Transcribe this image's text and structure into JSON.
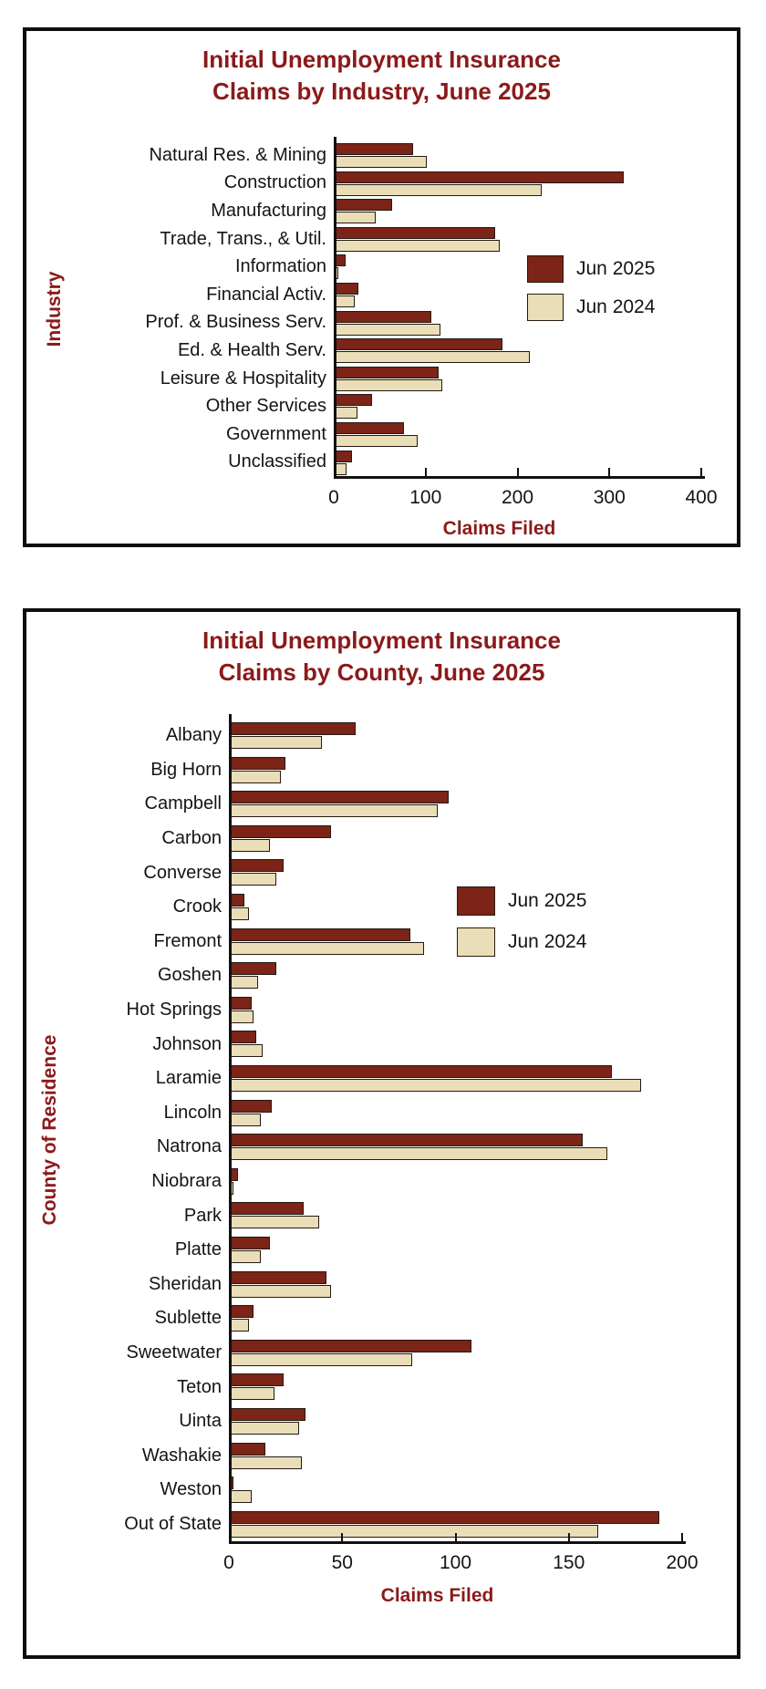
{
  "page": {
    "background": "#ffffff"
  },
  "colors": {
    "title_maroon": "#8B1A1A",
    "bar_jun2025": "#7B2417",
    "bar_jun2024": "#EADEB8",
    "bar_border": "#241a12",
    "axis_black": "#111111"
  },
  "chart_data": [
    {
      "type": "bar",
      "orientation": "horizontal",
      "title_line1": "Initial Unemployment Insurance",
      "title_line2": "Claims by Industry, June 2025",
      "xlabel": "Claims Filed",
      "ylabel": "Industry",
      "xlim": [
        0,
        400
      ],
      "xticks": [
        0,
        100,
        200,
        300,
        400
      ],
      "grid": false,
      "legend_position": "inside-right",
      "categories": [
        "Natural Res. & Mining",
        "Construction",
        "Manufacturing",
        "Trade, Trans., & Util.",
        "Information",
        "Financial Activ.",
        "Prof. & Business Serv.",
        "Ed. & Health Serv.",
        "Leisure & Hospitality",
        "Other Services",
        "Government",
        "Unclassified"
      ],
      "series": [
        {
          "name": "Jun 2025",
          "color": "#7B2417",
          "values": [
            86,
            316,
            64,
            176,
            13,
            27,
            106,
            184,
            114,
            42,
            76,
            20
          ]
        },
        {
          "name": "Jun 2024",
          "color": "#EADEB8",
          "values": [
            101,
            226,
            46,
            181,
            5,
            23,
            116,
            213,
            118,
            26,
            91,
            14
          ]
        }
      ]
    },
    {
      "type": "bar",
      "orientation": "horizontal",
      "title_line1": "Initial Unemployment Insurance",
      "title_line2": "Claims by County, June 2025",
      "xlabel": "Claims Filed",
      "ylabel": "County of Residence",
      "xlim": [
        0,
        200
      ],
      "xticks": [
        0,
        50,
        100,
        150,
        200
      ],
      "grid": false,
      "legend_position": "inside-right",
      "categories": [
        "Albany",
        "Big Horn",
        "Campbell",
        "Carbon",
        "Converse",
        "Crook",
        "Fremont",
        "Goshen",
        "Hot Springs",
        "Johnson",
        "Laramie",
        "Lincoln",
        "Natrona",
        "Niobrara",
        "Park",
        "Platte",
        "Sheridan",
        "Sublette",
        "Sweetwater",
        "Teton",
        "Uinta",
        "Washakie",
        "Weston",
        "Out of State"
      ],
      "series": [
        {
          "name": "Jun 2025",
          "color": "#7B2417",
          "values": [
            56,
            25,
            97,
            45,
            24,
            7,
            80,
            21,
            10,
            12,
            169,
            19,
            156,
            4,
            33,
            18,
            43,
            11,
            107,
            24,
            34,
            16,
            2,
            190
          ]
        },
        {
          "name": "Jun 2024",
          "color": "#EADEB8",
          "values": [
            41,
            23,
            92,
            18,
            21,
            9,
            86,
            13,
            11,
            15,
            182,
            14,
            167,
            2,
            40,
            14,
            45,
            9,
            81,
            20,
            31,
            32,
            10,
            163
          ]
        }
      ]
    }
  ]
}
